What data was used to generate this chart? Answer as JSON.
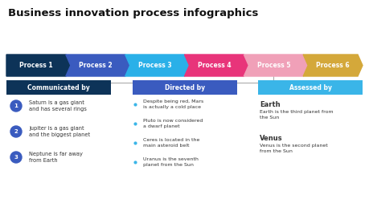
{
  "title": "Business innovation process infographics",
  "title_fontsize": 9.5,
  "title_fontweight": "bold",
  "bg_color": "#ffffff",
  "arrow_labels": [
    "Process 1",
    "Process 2",
    "Process 3",
    "Process 4",
    "Process 5",
    "Process 6"
  ],
  "arrow_colors": [
    "#0d3358",
    "#3a5bbf",
    "#2ab0e8",
    "#e8347a",
    "#f0a0b8",
    "#d4a83a"
  ],
  "header_labels": [
    "Communicated by",
    "Directed by",
    "Assessed by"
  ],
  "header_colors": [
    "#0d3358",
    "#3a5bbf",
    "#3ab5e8"
  ],
  "numbered_items": [
    {
      "num": "1",
      "text": "Saturn is a gas giant\nand has several rings"
    },
    {
      "num": "2",
      "text": "Jupiter is a gas giant\nand the biggest planet"
    },
    {
      "num": "3",
      "text": "Neptune is far away\nfrom Earth"
    }
  ],
  "bullet_items": [
    "Despite being red, Mars\nis actually a cold place",
    "Pluto is now considered\na dwarf planet",
    "Ceres is located in the\nmain asteroid belt",
    "Uranus is the seventh\nplanet from the Sun"
  ],
  "right_items": [
    {
      "header": "Earth",
      "text": "Earth is the third planet from\nthe Sun"
    },
    {
      "header": "Venus",
      "text": "Venus is the second planet\nfrom the Sun"
    }
  ],
  "circle_color": "#3a5bbf",
  "text_color": "#333333",
  "bullet_color": "#3ab5e8",
  "line_color": "#aaaaaa"
}
